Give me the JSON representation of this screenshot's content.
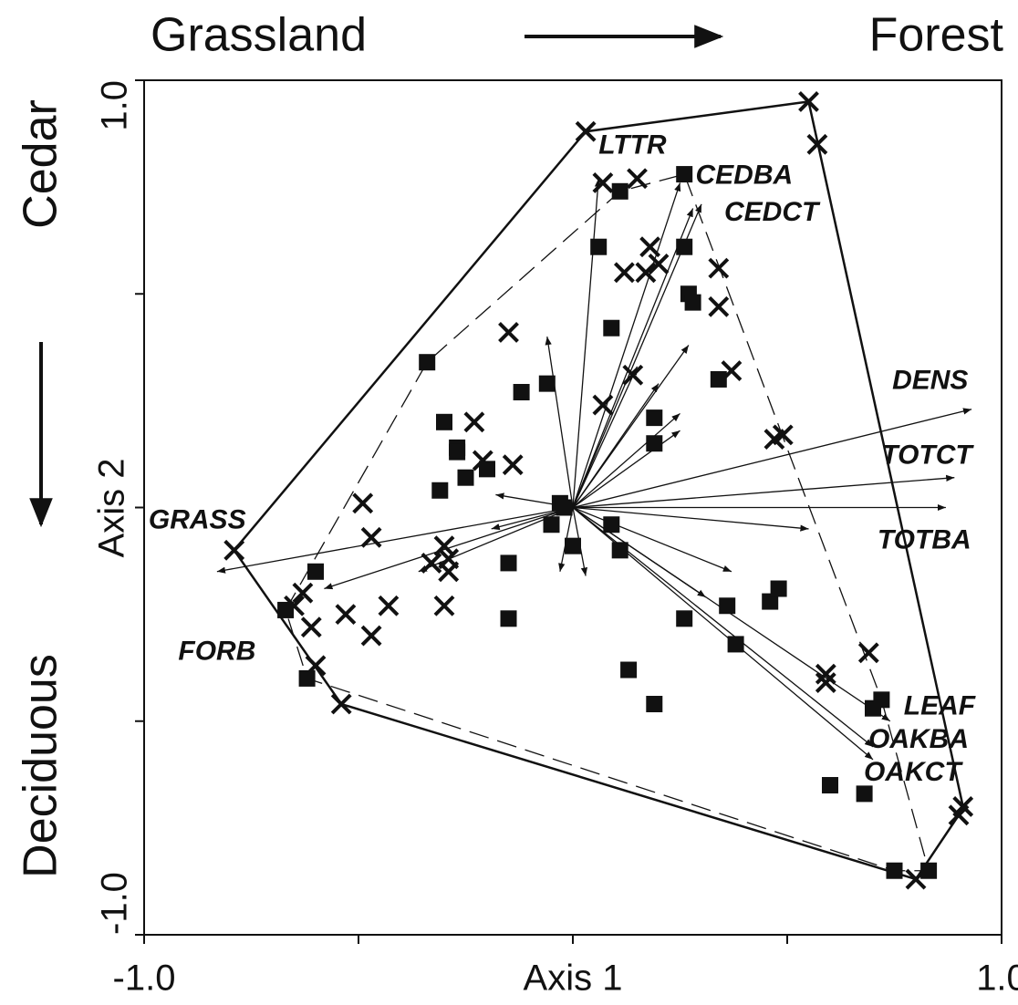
{
  "chart_data": {
    "type": "scatter",
    "annotations": {
      "top_left": "Grassland",
      "top_right": "Forest",
      "left_top": "Cedar",
      "left_bottom": "Deciduous"
    },
    "xlabel": "Axis 1",
    "ylabel": "Axis 2",
    "xlim": [
      -1,
      1
    ],
    "ylim": [
      -1,
      1
    ],
    "xticks": [
      {
        "value": -1,
        "label": "-1.0"
      },
      {
        "value": 1,
        "label": "1.0"
      }
    ],
    "yticks": [
      {
        "value": -1,
        "label": "-1.0"
      },
      {
        "value": 1,
        "label": "1.0"
      }
    ],
    "xminorticks": [
      -0.5,
      0,
      0.5
    ],
    "yminorticks": [
      -0.5,
      0,
      0.5
    ],
    "series": [
      {
        "marker": "x",
        "color": "#111111",
        "x": [
          -0.79,
          0.03,
          0.55,
          0.57,
          0.07,
          0.15,
          0.18,
          0.12,
          0.17,
          0.2,
          0.34,
          0.34,
          0.37,
          0.14,
          0.07,
          -0.15,
          -0.23,
          -0.14,
          -0.21,
          0.47,
          0.49,
          -0.49,
          -0.47,
          -0.3,
          -0.29,
          -0.33,
          -0.29,
          -0.63,
          -0.65,
          -0.61,
          -0.53,
          -0.43,
          -0.47,
          -0.3,
          -0.6,
          -0.54,
          0.69,
          0.59,
          0.59,
          0.91,
          0.9,
          0.8
        ],
        "values": [
          -0.1,
          0.88,
          0.95,
          0.85,
          0.76,
          0.77,
          0.61,
          0.55,
          0.55,
          0.57,
          0.56,
          0.47,
          0.32,
          0.31,
          0.24,
          0.41,
          0.2,
          0.1,
          0.11,
          0.16,
          0.17,
          0.01,
          -0.07,
          -0.09,
          -0.12,
          -0.13,
          -0.15,
          -0.2,
          -0.23,
          -0.28,
          -0.25,
          -0.23,
          -0.3,
          -0.23,
          -0.37,
          -0.46,
          -0.34,
          -0.39,
          -0.41,
          -0.7,
          -0.72,
          -0.87
        ]
      },
      {
        "marker": "square",
        "color": "#111111",
        "x": [
          0.11,
          0.26,
          0.26,
          0.06,
          0.27,
          0.28,
          0.09,
          -0.34,
          -0.12,
          -0.06,
          0.34,
          0.19,
          0.19,
          -0.3,
          -0.27,
          -0.27,
          -0.25,
          -0.31,
          -0.2,
          -0.03,
          -0.02,
          -0.05,
          0.0,
          0.09,
          0.11,
          -0.6,
          -0.67,
          -0.15,
          -0.15,
          0.36,
          0.46,
          0.48,
          0.26,
          0.38,
          0.13,
          0.19,
          -0.62,
          0.72,
          0.7,
          0.6,
          0.68,
          0.75,
          0.83
        ],
        "values": [
          0.74,
          0.78,
          0.61,
          0.61,
          0.5,
          0.48,
          0.42,
          0.34,
          0.27,
          0.29,
          0.3,
          0.21,
          0.15,
          0.2,
          0.14,
          0.13,
          0.07,
          0.04,
          0.09,
          0.01,
          0.0,
          -0.04,
          -0.09,
          -0.04,
          -0.1,
          -0.15,
          -0.24,
          -0.13,
          -0.26,
          -0.23,
          -0.22,
          -0.19,
          -0.26,
          -0.32,
          -0.38,
          -0.46,
          -0.4,
          -0.45,
          -0.47,
          -0.65,
          -0.67,
          -0.85,
          -0.85
        ]
      }
    ],
    "vectors": {
      "labels": [
        "LTTR",
        "CEDBA",
        "CEDCT",
        "DENS",
        "TOTCT",
        "TOTBA",
        "GRASS",
        "FORB",
        "LEAF",
        "OAKBA",
        "OAKCT",
        null,
        null,
        null,
        null,
        null,
        null,
        null,
        null,
        null,
        null,
        null,
        null,
        null,
        null,
        null
      ],
      "x": [
        0.06,
        0.25,
        0.3,
        0.93,
        0.89,
        0.87,
        -0.83,
        -0.58,
        0.74,
        0.7,
        0.7,
        -0.06,
        0.27,
        0.25,
        0.25,
        0.55,
        0.37,
        0.31,
        -0.18,
        -0.19,
        -0.36,
        0.03,
        -0.03,
        0.15,
        0.2,
        0.28
      ],
      "y": [
        0.77,
        0.76,
        0.71,
        0.23,
        0.07,
        0.0,
        -0.15,
        -0.19,
        -0.5,
        -0.56,
        -0.59,
        0.4,
        0.38,
        0.22,
        0.18,
        -0.05,
        -0.15,
        -0.21,
        0.03,
        -0.05,
        -0.15,
        -0.16,
        -0.15,
        0.33,
        0.29,
        0.7
      ]
    }
  }
}
